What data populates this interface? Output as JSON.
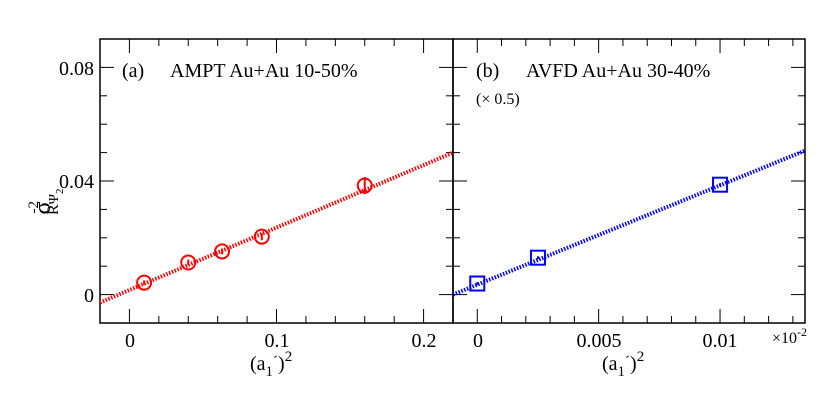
{
  "chart_data": [
    {
      "type": "scatter",
      "panel_label": "(a)",
      "title": "AMPT Au+Au 10-50%",
      "xlabel": "(a1´)^2",
      "ylabel": "σ^-2 R Ψ2",
      "xlim": [
        -0.02,
        0.22
      ],
      "ylim": [
        -0.01,
        0.09
      ],
      "xticks": [
        0,
        0.1,
        0.2
      ],
      "xtick_labels": [
        "0",
        "0.1",
        "0.2"
      ],
      "yticks": [
        0,
        0.04,
        0.08
      ],
      "ytick_labels": [
        "0",
        "0.04",
        "0.08"
      ],
      "grid": false,
      "marker": "open-circle",
      "color": "#ff0000",
      "x": [
        0.01,
        0.04,
        0.063,
        0.09,
        0.16
      ],
      "y": [
        0.0042,
        0.0113,
        0.0152,
        0.0204,
        0.0384
      ],
      "yerr": [
        0.0008,
        0.001,
        0.001,
        0.0012,
        0.003
      ],
      "fit_line": {
        "style": "dotted",
        "x": [
          -0.02,
          0.22
        ],
        "y": [
          -0.0028,
          0.05
        ]
      }
    },
    {
      "type": "scatter",
      "panel_label": "(b)",
      "title": "AVFD Au+Au 30-40%",
      "note": "(× 0.5)",
      "xlabel": "(a1´)^2",
      "x_multiplier": "×10-2",
      "xlim": [
        -0.001,
        0.0135
      ],
      "ylim": [
        -0.01,
        0.09
      ],
      "xticks": [
        0,
        0.005,
        0.01
      ],
      "xtick_labels": [
        "0",
        "0.005",
        "0.01"
      ],
      "grid": false,
      "marker": "open-square",
      "color": "#0000ff",
      "x": [
        0,
        0.0025,
        0.01
      ],
      "y": [
        0.0039,
        0.013,
        0.0387
      ],
      "yerr": [
        0.0005,
        0.0005,
        0.0005
      ],
      "fit_line": {
        "style": "dotted",
        "x": [
          -0.001,
          0.0135
        ],
        "y": [
          0.0,
          0.0507
        ]
      }
    }
  ]
}
